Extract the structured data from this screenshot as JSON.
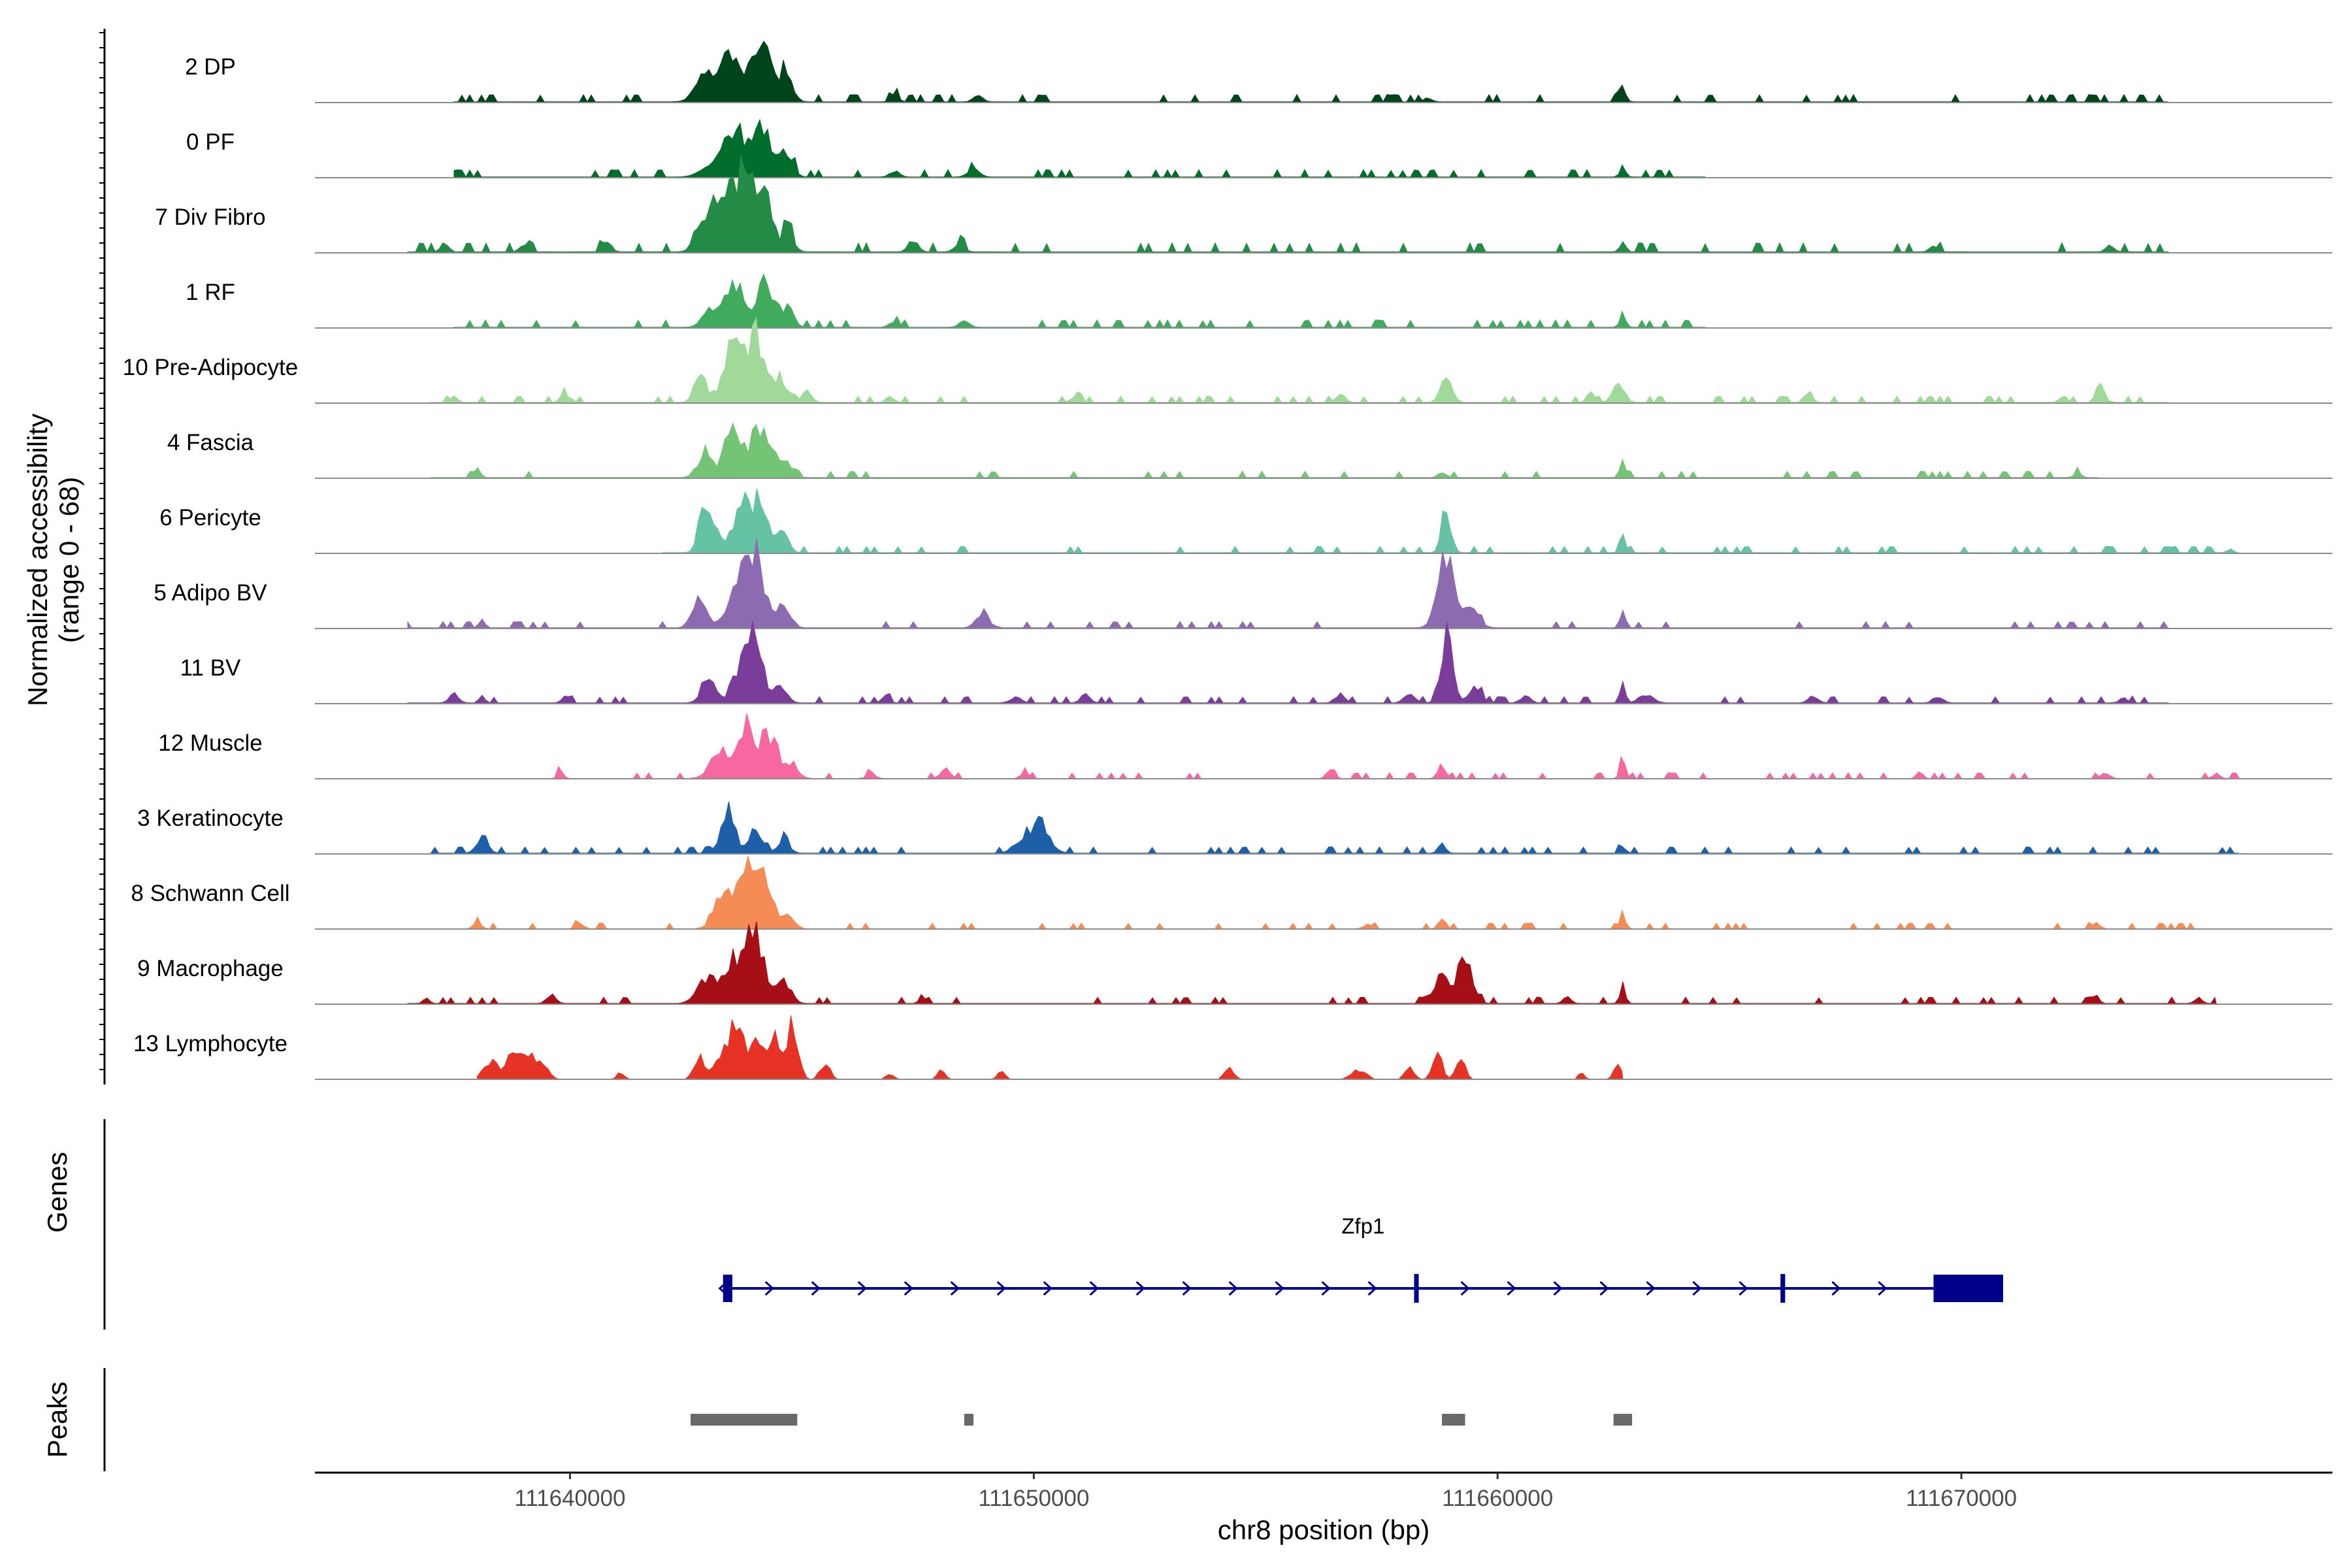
{
  "chart_data": {
    "type": "area",
    "chromosome": "chr8",
    "xlabel": "chr8 position (bp)",
    "ylabel": "Normalized accessibility",
    "ylabel_range": "(range 0 - 68)",
    "xlim": [
      111634500,
      111678000
    ],
    "ylim": [
      0,
      68
    ],
    "xticks": [
      111640000,
      111650000,
      111660000,
      111670000
    ],
    "xtick_labels": [
      "111640000",
      "111650000",
      "111660000",
      "111670000"
    ],
    "tracks": [
      {
        "name": "2 DP",
        "color": "#00441b",
        "region": [
          111637500,
          111674500
        ],
        "baseline": 0.4,
        "peaks": [
          [
            111642900,
            1.5,
            200
          ],
          [
            111643500,
            3.5,
            200
          ],
          [
            111644250,
            3.0,
            220
          ],
          [
            111644700,
            1.6,
            120
          ],
          [
            111643000,
            0.8,
            180
          ],
          [
            111644000,
            2.1,
            150
          ],
          [
            111647000,
            0.5,
            80
          ],
          [
            111648800,
            0.4,
            100
          ],
          [
            111658500,
            0.3,
            80
          ],
          [
            111662700,
            1.0,
            60
          ]
        ]
      },
      {
        "name": "0 PF",
        "color": "#006d2c",
        "region": [
          111637500,
          111664500
        ],
        "baseline": 0.4,
        "peaks": [
          [
            111643500,
            3.0,
            200
          ],
          [
            111644200,
            2.7,
            220
          ],
          [
            111644700,
            1.5,
            120
          ],
          [
            111643000,
            0.8,
            200
          ],
          [
            111643900,
            1.8,
            150
          ],
          [
            111647000,
            0.4,
            100
          ],
          [
            111648700,
            0.5,
            120
          ],
          [
            111662700,
            0.7,
            60
          ]
        ]
      },
      {
        "name": "7 Div Fibro",
        "color": "#238b45",
        "region": [
          111636500,
          111674500
        ],
        "baseline": 0.5,
        "peaks": [
          [
            111643200,
            3.5,
            200
          ],
          [
            111643600,
            4.6,
            200
          ],
          [
            111644100,
            5.0,
            200
          ],
          [
            111644700,
            1.5,
            120
          ],
          [
            111642800,
            1.1,
            150
          ],
          [
            111637300,
            0.6,
            80
          ],
          [
            111639000,
            0.6,
            80
          ],
          [
            111640800,
            0.8,
            90
          ],
          [
            111647400,
            0.8,
            100
          ],
          [
            111648400,
            0.6,
            100
          ],
          [
            111662700,
            0.9,
            60
          ],
          [
            111669400,
            0.5,
            80
          ],
          [
            111673200,
            0.5,
            80
          ]
        ]
      },
      {
        "name": "1 RF",
        "color": "#41ab5d",
        "region": [
          111637500,
          111664500
        ],
        "baseline": 0.4,
        "peaks": [
          [
            111643500,
            2.9,
            200
          ],
          [
            111644200,
            3.1,
            200
          ],
          [
            111644700,
            1.3,
            120
          ],
          [
            111643000,
            1.3,
            150
          ],
          [
            111647000,
            0.4,
            100
          ],
          [
            111648500,
            0.4,
            100
          ],
          [
            111662700,
            0.9,
            60
          ]
        ]
      },
      {
        "name": "10 Pre-Adipocyte",
        "color": "#a1d99b",
        "region": [
          111637000,
          111674500
        ],
        "baseline": 0.35,
        "peaks": [
          [
            111642800,
            2.1,
            120
          ],
          [
            111643500,
            4.0,
            180
          ],
          [
            111644000,
            4.7,
            180
          ],
          [
            111644500,
            1.5,
            150
          ],
          [
            111645100,
            0.8,
            100
          ],
          [
            111637500,
            0.4,
            80
          ],
          [
            111639900,
            0.6,
            100
          ],
          [
            111646900,
            0.5,
            80
          ],
          [
            111650900,
            0.4,
            100
          ],
          [
            111656600,
            0.6,
            100
          ],
          [
            111658900,
            1.7,
            120
          ],
          [
            111662600,
            1.6,
            120
          ],
          [
            111662000,
            0.7,
            80
          ],
          [
            111666700,
            0.8,
            80
          ],
          [
            111673000,
            0.9,
            100
          ],
          [
            111672200,
            0.4,
            80
          ]
        ]
      },
      {
        "name": "4 Fascia",
        "color": "#74c476",
        "region": [
          111637000,
          111673000
        ],
        "baseline": 0.35,
        "peaks": [
          [
            111642900,
            1.6,
            150
          ],
          [
            111643500,
            3.3,
            180
          ],
          [
            111644100,
            3.6,
            200
          ],
          [
            111644600,
            1.2,
            150
          ],
          [
            111638000,
            0.7,
            60
          ],
          [
            111662700,
            1.2,
            60
          ],
          [
            111658800,
            0.4,
            80
          ],
          [
            111672500,
            0.3,
            80
          ]
        ]
      },
      {
        "name": "6 Pericyte",
        "color": "#66c2a4",
        "region": [
          111642000,
          111676000
        ],
        "baseline": 0.35,
        "peaks": [
          [
            111642900,
            3.6,
            120
          ],
          [
            111643200,
            1.5,
            100
          ],
          [
            111643700,
            3.0,
            180
          ],
          [
            111644100,
            3.3,
            180
          ],
          [
            111644600,
            1.4,
            120
          ],
          [
            111658900,
            2.8,
            100
          ],
          [
            111662700,
            0.9,
            60
          ],
          [
            111675800,
            0.3,
            60
          ]
        ]
      },
      {
        "name": "5 Adipo BV",
        "color": "#8c6bb1",
        "region": [
          111636500,
          111674500
        ],
        "baseline": 0.35,
        "peaks": [
          [
            111642800,
            2.2,
            150
          ],
          [
            111643600,
            3.0,
            200
          ],
          [
            111644000,
            4.8,
            180
          ],
          [
            111644600,
            1.5,
            150
          ],
          [
            111638100,
            0.6,
            60
          ],
          [
            111648900,
            0.8,
            150
          ],
          [
            111658900,
            5.0,
            180
          ],
          [
            111659400,
            1.1,
            180
          ],
          [
            111662700,
            1.1,
            60
          ]
        ]
      },
      {
        "name": "11 BV",
        "color": "#7a3d9a",
        "region": [
          111636500,
          111674500
        ],
        "baseline": 0.35,
        "peaks": [
          [
            111643000,
            1.5,
            150
          ],
          [
            111643700,
            2.6,
            180
          ],
          [
            111644000,
            4.3,
            150
          ],
          [
            111644500,
            1.2,
            150
          ],
          [
            111658900,
            4.9,
            120
          ],
          [
            111659500,
            1.0,
            150
          ],
          [
            111662700,
            1.4,
            60
          ],
          [
            111663200,
            0.6,
            150
          ],
          [
            111637500,
            0.6,
            100
          ],
          [
            111638100,
            0.5,
            60
          ],
          [
            111639900,
            0.5,
            80
          ],
          [
            111646800,
            0.5,
            80
          ],
          [
            111649600,
            0.4,
            120
          ],
          [
            111651100,
            0.6,
            100
          ],
          [
            111656600,
            0.6,
            100
          ],
          [
            111658100,
            0.6,
            120
          ],
          [
            111660600,
            0.5,
            100
          ],
          [
            111666800,
            0.5,
            100
          ],
          [
            111669500,
            0.5,
            100
          ],
          [
            111673500,
            0.3,
            100
          ]
        ]
      },
      {
        "name": "12 Muscle",
        "color": "#f768a1",
        "region": [
          111639500,
          111676000
        ],
        "baseline": 0.3,
        "peaks": [
          [
            111643200,
            2.1,
            180
          ],
          [
            111643800,
            3.7,
            180
          ],
          [
            111644300,
            2.8,
            180
          ],
          [
            111644800,
            1.0,
            120
          ],
          [
            111639800,
            0.5,
            60
          ],
          [
            111646500,
            0.4,
            80
          ],
          [
            111648100,
            0.6,
            100
          ],
          [
            111649800,
            0.4,
            80
          ],
          [
            111656400,
            0.5,
            80
          ],
          [
            111658800,
            0.9,
            80
          ],
          [
            111662700,
            1.2,
            60
          ],
          [
            111669100,
            0.5,
            60
          ],
          [
            111673100,
            0.4,
            80
          ],
          [
            111675500,
            0.4,
            60
          ]
        ]
      },
      {
        "name": "3 Keratinocyte",
        "color": "#1d5fa8",
        "region": [
          111637000,
          111676000
        ],
        "baseline": 0.35,
        "peaks": [
          [
            111638100,
            1.0,
            120
          ],
          [
            111643400,
            3.0,
            150
          ],
          [
            111644000,
            1.7,
            150
          ],
          [
            111644600,
            1.0,
            120
          ],
          [
            111650100,
            2.1,
            220
          ],
          [
            111649600,
            0.5,
            120
          ],
          [
            111658800,
            0.6,
            80
          ],
          [
            111662700,
            0.5,
            60
          ]
        ]
      },
      {
        "name": "8 Schwann Cell",
        "color": "#f58c55",
        "region": [
          111637500,
          111675500
        ],
        "baseline": 0.3,
        "peaks": [
          [
            111643300,
            2.5,
            180
          ],
          [
            111643800,
            4.0,
            180
          ],
          [
            111644200,
            3.0,
            180
          ],
          [
            111644700,
            1.2,
            120
          ],
          [
            111638000,
            0.4,
            80
          ],
          [
            111640200,
            0.4,
            80
          ],
          [
            111657200,
            0.3,
            80
          ],
          [
            111658800,
            0.7,
            70
          ],
          [
            111662700,
            1.0,
            60
          ],
          [
            111672900,
            0.4,
            80
          ]
        ]
      },
      {
        "name": "9 Macrophage",
        "color": "#a50f15",
        "region": [
          111636500,
          111675500
        ],
        "baseline": 0.35,
        "peaks": [
          [
            111642900,
            1.8,
            180
          ],
          [
            111643500,
            3.1,
            200
          ],
          [
            111644000,
            4.8,
            180
          ],
          [
            111644600,
            1.6,
            150
          ],
          [
            111636900,
            0.5,
            60
          ],
          [
            111639600,
            0.6,
            100
          ],
          [
            111647600,
            0.6,
            60
          ],
          [
            111658800,
            2.0,
            150
          ],
          [
            111659300,
            3.5,
            150
          ],
          [
            111662700,
            1.2,
            60
          ],
          [
            111661500,
            0.5,
            80
          ],
          [
            111672900,
            0.8,
            60
          ],
          [
            111675100,
            0.4,
            80
          ]
        ]
      },
      {
        "name": "13 Lymphocyte",
        "color": "#e63325",
        "region": [
          111638000,
          111662700
        ],
        "baseline": 0.0,
        "peaks": [
          [
            111638300,
            1.3,
            150
          ],
          [
            111638800,
            2.2,
            150
          ],
          [
            111639200,
            1.6,
            150
          ],
          [
            111639500,
            0.6,
            100
          ],
          [
            111642800,
            1.5,
            120
          ],
          [
            111643300,
            2.0,
            150
          ],
          [
            111643600,
            4.0,
            120
          ],
          [
            111644000,
            2.8,
            150
          ],
          [
            111644400,
            3.3,
            120
          ],
          [
            111644800,
            3.8,
            120
          ],
          [
            111641100,
            0.5,
            80
          ],
          [
            111645500,
            1.2,
            100
          ],
          [
            111646900,
            0.4,
            80
          ],
          [
            111648000,
            0.8,
            80
          ],
          [
            111649300,
            0.6,
            80
          ],
          [
            111654200,
            0.8,
            100
          ],
          [
            111657000,
            0.7,
            150
          ],
          [
            111658100,
            0.8,
            100
          ],
          [
            111658700,
            1.8,
            100
          ],
          [
            111659200,
            1.6,
            100
          ],
          [
            111661800,
            0.6,
            60
          ],
          [
            111662600,
            1.2,
            80
          ]
        ]
      }
    ],
    "genes_panel": {
      "title": "Genes",
      "gene": "Zfp1",
      "strand": "+",
      "color": "#00008b",
      "span": [
        111643300,
        111670900
      ],
      "exons": [
        [
          111643300,
          111643500
        ],
        [
          111658200,
          111658300
        ],
        [
          111666100,
          111666200
        ],
        [
          111669400,
          111670900
        ]
      ],
      "arrow_positions": [
        111644300,
        111645300,
        111646300,
        111647300,
        111648300,
        111649300,
        111650300,
        111651300,
        111652300,
        111653300,
        111654300,
        111655300,
        111656300,
        111657300,
        111659300,
        111660300,
        111661300,
        111662300,
        111663300,
        111664300,
        111665300,
        111667300,
        111668300
      ]
    },
    "peaks_panel": {
      "title": "Peaks",
      "color": "#696969",
      "regions": [
        [
          111642600,
          111644900
        ],
        [
          111648500,
          111648700
        ],
        [
          111658800,
          111659300
        ],
        [
          111662500,
          111662900
        ]
      ]
    }
  }
}
